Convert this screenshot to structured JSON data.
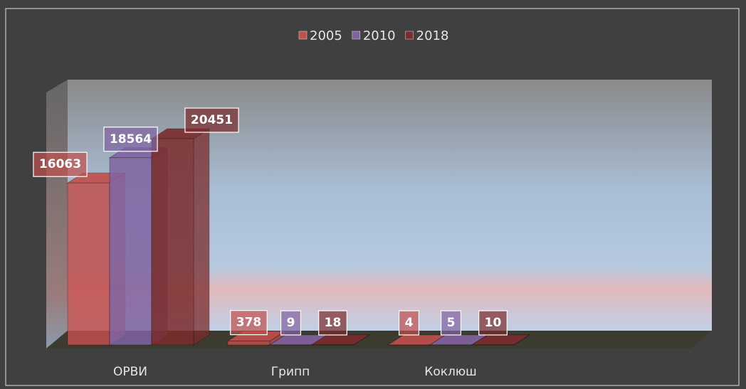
{
  "chart_data": {
    "type": "bar",
    "categories": [
      "ОРВИ",
      "Грипп",
      "Коклюш"
    ],
    "series": [
      {
        "name": "2005",
        "color": "#c0504d",
        "values": [
          16063,
          378,
          4
        ]
      },
      {
        "name": "2010",
        "color": "#8064a2",
        "values": [
          18564,
          9,
          5
        ]
      },
      {
        "name": "2018",
        "color": "#7b2c2c",
        "values": [
          20451,
          18,
          10
        ]
      }
    ]
  }
}
